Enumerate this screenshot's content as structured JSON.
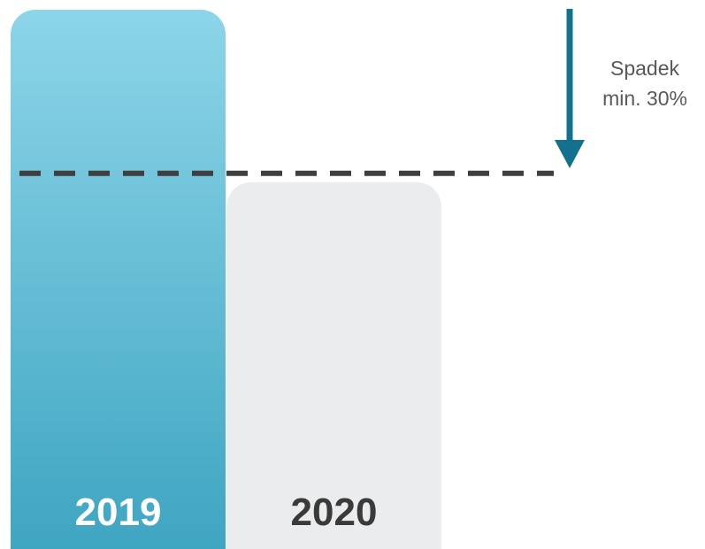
{
  "chart_data": {
    "type": "bar",
    "categories": [
      "2019",
      "2020"
    ],
    "values": [
      100,
      70
    ],
    "ylim": [
      0,
      100
    ],
    "threshold": {
      "value": 70,
      "style": "dashed"
    },
    "annotation": {
      "line1": "Spadek",
      "line2": "min. 30%",
      "arrow_direction": "down"
    },
    "title": "",
    "xlabel": "",
    "ylabel": "",
    "grid": false,
    "legend": "none"
  },
  "colors": {
    "bar_2019_top": "#8dd5e8",
    "bar_2019_bottom": "#3ba3c0",
    "bar_2020": "#ebecee",
    "label_2019": "#ffffff",
    "label_2020": "#3a3a3a",
    "threshold_line": "#3f3f3f",
    "arrow": "#13718d",
    "annotation_text": "#595959"
  }
}
